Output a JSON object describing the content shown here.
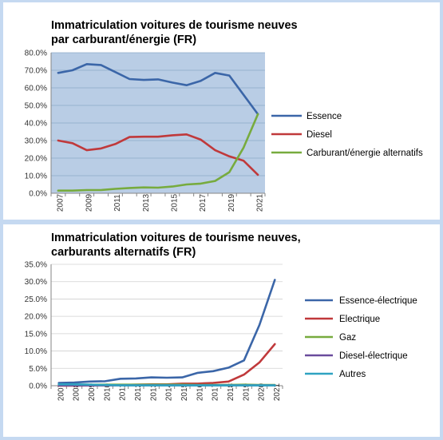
{
  "chart_data": [
    {
      "type": "line",
      "title": [
        "Immatriculation voitures de tourisme neuves",
        "par carburant/énergie (FR)"
      ],
      "x": [
        "2007",
        "2008",
        "2009",
        "2010",
        "2011",
        "2012",
        "2013",
        "2014",
        "2015",
        "2016",
        "2017",
        "2018",
        "2019",
        "2020",
        "2021"
      ],
      "x_tick_labels": [
        "2007",
        "2009",
        "2011",
        "2013",
        "2015",
        "2017",
        "2019",
        "2021"
      ],
      "ylim": [
        0,
        80
      ],
      "y_ticks": [
        0,
        10,
        20,
        30,
        40,
        50,
        60,
        70,
        80
      ],
      "y_tick_labels": [
        "0.0%",
        "10.0%",
        "20.0%",
        "30.0%",
        "40.0%",
        "50.0%",
        "60.0%",
        "70.0%",
        "80.0%"
      ],
      "grid": true,
      "plot_background": "#b9cde5",
      "legend_position": "right",
      "series": [
        {
          "name": "Essence",
          "color": "#3b66a8",
          "values": [
            68.5,
            70,
            73.5,
            73,
            69,
            65,
            64.5,
            64.8,
            63,
            61.5,
            64,
            68.5,
            67,
            56,
            45
          ]
        },
        {
          "name": "Diesel",
          "color": "#c0393b",
          "values": [
            30,
            28.5,
            24.5,
            25.5,
            28,
            32,
            32.2,
            32.2,
            33,
            33.5,
            30.5,
            24.5,
            21,
            18.5,
            10.5
          ]
        },
        {
          "name": "Carburant/énergie alternatifs",
          "color": "#77ab3e",
          "values": [
            1.5,
            1.5,
            1.8,
            1.8,
            2.5,
            3,
            3.3,
            3.2,
            3.8,
            5,
            5.5,
            7,
            12,
            26,
            45
          ]
        }
      ]
    },
    {
      "type": "line",
      "title": [
        "Immatriculation voitures de tourisme neuves,",
        "carburants alternatifs (FR)"
      ],
      "x": [
        "2007",
        "2008",
        "2009",
        "2010",
        "2011",
        "2012",
        "2013",
        "2014",
        "2015",
        "2016",
        "2017",
        "2018",
        "2019",
        "2020",
        "2021"
      ],
      "x_tick_labels": [
        "2007",
        "2008",
        "2009",
        "2010",
        "2011",
        "2012",
        "2013",
        "2014",
        "2015",
        "2016",
        "2017",
        "2018",
        "2019",
        "2020",
        "2021"
      ],
      "ylim": [
        0,
        35
      ],
      "y_ticks": [
        0,
        5,
        10,
        15,
        20,
        25,
        30,
        35
      ],
      "y_tick_labels": [
        "0.0%",
        "5.0%",
        "10.0%",
        "15.0%",
        "20.0%",
        "25.0%",
        "30.0%",
        "35.0%"
      ],
      "grid": true,
      "plot_background": "#ffffff",
      "legend_position": "right",
      "series": [
        {
          "name": "Essence-électrique",
          "color": "#3b66a8",
          "values": [
            0.8,
            0.9,
            1.2,
            1.3,
            2,
            2.1,
            2.4,
            2.3,
            2.4,
            3.7,
            4.2,
            5.2,
            7.3,
            17.5,
            30.5
          ]
        },
        {
          "name": "Electrique",
          "color": "#c0393b",
          "values": [
            0,
            0,
            0.1,
            0.1,
            0.2,
            0.3,
            0.4,
            0.4,
            0.6,
            0.6,
            0.8,
            1.2,
            3.2,
            6.7,
            12
          ]
        },
        {
          "name": "Gaz",
          "color": "#77ab3e",
          "values": [
            0.3,
            0.3,
            0.3,
            0.3,
            0.3,
            0.3,
            0.3,
            0.3,
            0.3,
            0.2,
            0.2,
            0.2,
            0.3,
            0.2,
            0.2
          ]
        },
        {
          "name": "Diesel-électrique",
          "color": "#6a4c9c",
          "values": [
            0.1,
            0.1,
            0.1,
            0.1,
            0.1,
            0.1,
            0.1,
            0.1,
            0.1,
            0.1,
            0.1,
            0.1,
            0.1,
            0.1,
            0.1
          ]
        },
        {
          "name": "Autres",
          "color": "#2fa3c1",
          "values": [
            0.4,
            0.4,
            0.3,
            0.2,
            0.1,
            0.1,
            0.1,
            0.1,
            0.1,
            0.1,
            0.1,
            0.1,
            0.1,
            0.1,
            0.1
          ]
        }
      ]
    }
  ]
}
